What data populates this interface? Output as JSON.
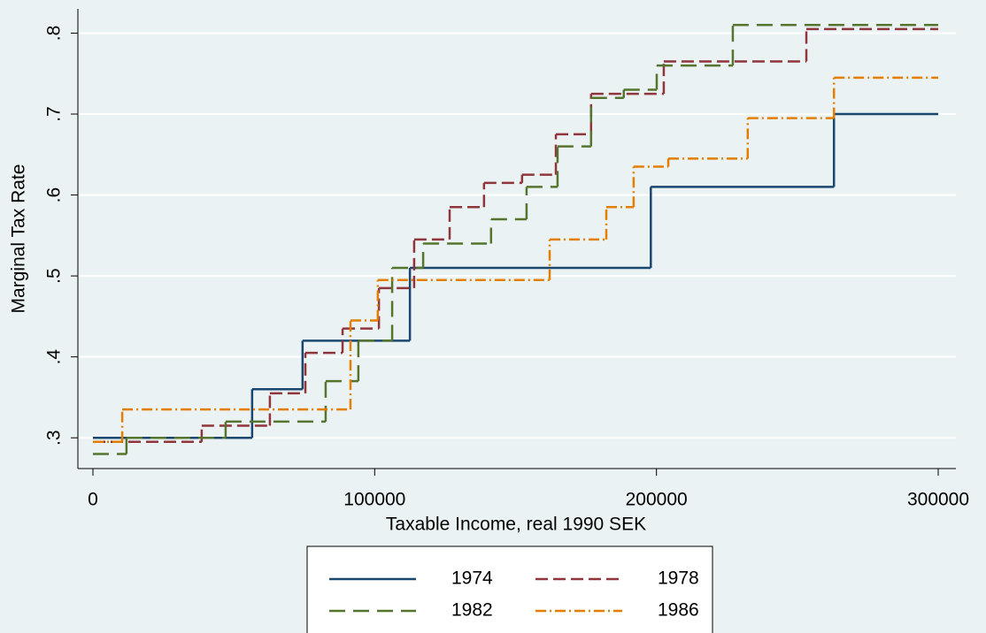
{
  "chart_data": {
    "type": "step",
    "xlabel": "Taxable Income, real 1990 SEK",
    "ylabel": "Marginal Tax Rate",
    "xlim": [
      -5340,
      306280
    ],
    "ylim": [
      0.262,
      0.83
    ],
    "xticks": [
      0,
      100000,
      200000,
      300000
    ],
    "yticks": [
      {
        "value": 0.3,
        "label": ".3"
      },
      {
        "value": 0.4,
        "label": ".4"
      },
      {
        "value": 0.5,
        "label": ".5"
      },
      {
        "value": 0.6,
        "label": ".6"
      },
      {
        "value": 0.7,
        "label": ".7"
      },
      {
        "value": 0.8,
        "label": ".8"
      }
    ],
    "grid": true,
    "series": [
      {
        "name": "1974",
        "color": "#1a476f",
        "dash": "solid",
        "x_edges": [
          0,
          56500,
          74400,
          112500,
          198000,
          263000,
          300000
        ],
        "values": [
          0.3,
          0.36,
          0.42,
          0.51,
          0.61,
          0.7
        ]
      },
      {
        "name": "1978",
        "color": "#90353b",
        "dash": "dash",
        "x_edges": [
          0,
          38600,
          62800,
          75400,
          88600,
          101500,
          114000,
          126600,
          138800,
          152300,
          164300,
          176800,
          202600,
          253200,
          300000
        ],
        "values": [
          0.295,
          0.315,
          0.355,
          0.405,
          0.435,
          0.485,
          0.545,
          0.585,
          0.615,
          0.625,
          0.675,
          0.725,
          0.765,
          0.805
        ]
      },
      {
        "name": "1982",
        "color": "#55752f",
        "dash": "longdash",
        "x_edges": [
          0,
          11900,
          47100,
          82600,
          94200,
          106200,
          117200,
          141300,
          153900,
          164900,
          176800,
          188400,
          200100,
          227100,
          300000
        ],
        "values": [
          0.28,
          0.3,
          0.32,
          0.37,
          0.42,
          0.51,
          0.54,
          0.57,
          0.61,
          0.66,
          0.72,
          0.73,
          0.76,
          0.81
        ]
      },
      {
        "name": "1986",
        "color": "#e37e00",
        "dash": "dashdot",
        "x_edges": [
          0,
          10400,
          91400,
          101100,
          162100,
          182200,
          191900,
          204200,
          232400,
          263000,
          300000
        ],
        "values": [
          0.295,
          0.335,
          0.445,
          0.495,
          0.545,
          0.585,
          0.635,
          0.645,
          0.695,
          0.745
        ]
      }
    ]
  }
}
